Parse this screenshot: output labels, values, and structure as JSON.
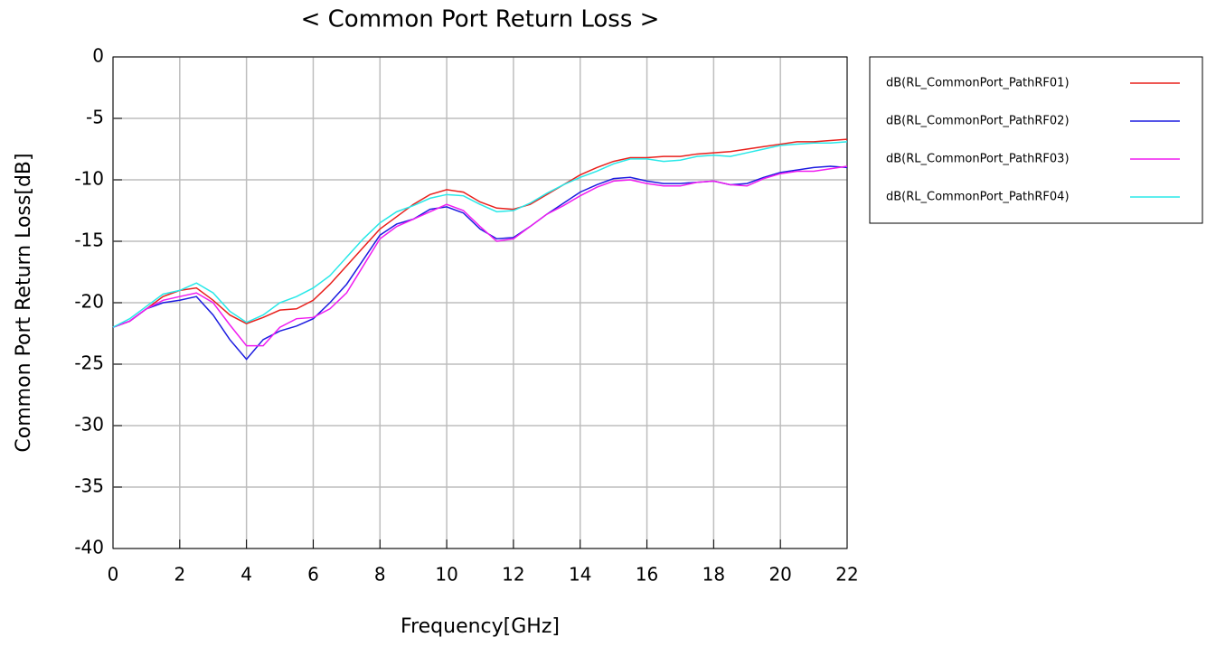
{
  "chart_data": {
    "type": "line",
    "title": "< Common Port Return Loss >",
    "x_label": "Frequency[GHz]",
    "y_label": "Common Port Return Loss[dB]",
    "x": [
      0,
      0.5,
      1,
      1.5,
      2,
      2.5,
      3,
      3.5,
      4,
      4.5,
      5,
      5.5,
      6,
      6.5,
      7,
      7.5,
      8,
      8.5,
      9,
      9.5,
      10,
      10.5,
      11,
      11.5,
      12,
      12.5,
      13,
      13.5,
      14,
      14.5,
      15,
      15.5,
      16,
      16.5,
      17,
      17.5,
      18,
      18.5,
      19,
      19.5,
      20,
      20.5,
      21,
      21.5,
      22
    ],
    "series": [
      {
        "name": "dB(RL_CommonPort_PathRF01)",
        "color": "#e8201c",
        "values": [
          -22,
          -21.5,
          -20.5,
          -19.5,
          -19,
          -18.8,
          -19.8,
          -21,
          -21.7,
          -21.2,
          -20.6,
          -20.5,
          -19.8,
          -18.5,
          -17,
          -15.5,
          -14,
          -13,
          -12,
          -11.2,
          -10.8,
          -11,
          -11.8,
          -12.3,
          -12.4,
          -12,
          -11.2,
          -10.4,
          -9.6,
          -9,
          -8.5,
          -8.2,
          -8.2,
          -8.1,
          -8.1,
          -7.9,
          -7.8,
          -7.7,
          -7.5,
          -7.3,
          -7.1,
          -6.9,
          -6.9,
          -6.8,
          -6.7
        ]
      },
      {
        "name": "dB(RL_CommonPort_PathRF02)",
        "color": "#1c1ce0",
        "values": [
          -22,
          -21.5,
          -20.5,
          -20,
          -19.8,
          -19.5,
          -21,
          -23,
          -24.6,
          -23,
          -22.3,
          -21.9,
          -21.3,
          -20,
          -18.5,
          -16.5,
          -14.5,
          -13.6,
          -13.2,
          -12.4,
          -12.2,
          -12.7,
          -14,
          -14.8,
          -14.7,
          -13.8,
          -12.8,
          -11.9,
          -11,
          -10.4,
          -9.9,
          -9.8,
          -10.1,
          -10.3,
          -10.3,
          -10.2,
          -10.1,
          -10.4,
          -10.3,
          -9.8,
          -9.4,
          -9.2,
          -9,
          -8.9,
          -9
        ]
      },
      {
        "name": "dB(RL_CommonPort_PathRF03)",
        "color": "#f01cf0",
        "values": [
          -22,
          -21.5,
          -20.5,
          -19.8,
          -19.5,
          -19.2,
          -20,
          -21.8,
          -23.5,
          -23.5,
          -22,
          -21.3,
          -21.2,
          -20.5,
          -19.2,
          -17,
          -14.8,
          -13.8,
          -13.2,
          -12.6,
          -12,
          -12.5,
          -13.8,
          -15,
          -14.8,
          -13.8,
          -12.8,
          -12.1,
          -11.3,
          -10.6,
          -10.1,
          -10,
          -10.3,
          -10.5,
          -10.5,
          -10.2,
          -10.1,
          -10.4,
          -10.5,
          -9.9,
          -9.5,
          -9.3,
          -9.3,
          -9.1,
          -8.9
        ]
      },
      {
        "name": "dB(RL_CommonPort_PathRF04)",
        "color": "#28e8e8",
        "values": [
          -22,
          -21.3,
          -20.3,
          -19.3,
          -19,
          -18.4,
          -19.2,
          -20.7,
          -21.6,
          -21,
          -20,
          -19.5,
          -18.8,
          -17.8,
          -16.3,
          -14.8,
          -13.5,
          -12.6,
          -12.1,
          -11.5,
          -11.2,
          -11.3,
          -12,
          -12.6,
          -12.5,
          -11.9,
          -11.1,
          -10.4,
          -9.8,
          -9.3,
          -8.7,
          -8.3,
          -8.3,
          -8.5,
          -8.4,
          -8.1,
          -8,
          -8.1,
          -7.8,
          -7.5,
          -7.2,
          -7.1,
          -7,
          -7,
          -6.9
        ]
      }
    ],
    "xlim": [
      0,
      22
    ],
    "xticks": [
      0,
      2,
      4,
      6,
      8,
      10,
      12,
      14,
      16,
      18,
      20,
      22
    ],
    "ylim": [
      -40,
      0
    ],
    "yticks": [
      0,
      -5,
      -10,
      -15,
      -20,
      -25,
      -30,
      -35,
      -40
    ],
    "grid": true,
    "legend": "right"
  }
}
